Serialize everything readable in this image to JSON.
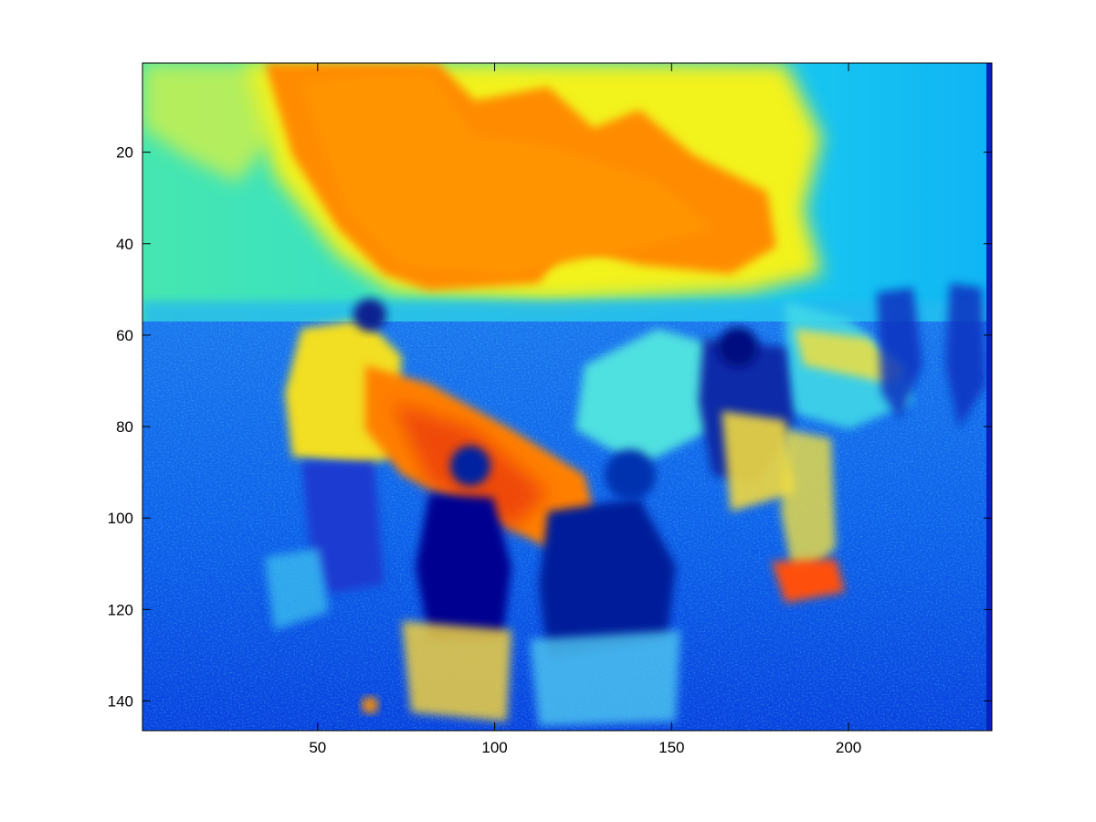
{
  "chart_data": {
    "type": "heatmap",
    "colormap": "jet",
    "title": "",
    "xlabel": "",
    "ylabel": "",
    "image_size": {
      "columns": 240,
      "rows": 146
    },
    "xlim": [
      0.5,
      240.5
    ],
    "ylim": [
      0.5,
      146.5
    ],
    "y_direction": "reverse",
    "x_ticks": [
      50,
      100,
      150,
      200
    ],
    "y_ticks": [
      20,
      40,
      60,
      80,
      100,
      120,
      140
    ],
    "x_tick_labels": [
      "50",
      "100",
      "150",
      "200"
    ],
    "y_tick_labels": [
      "20",
      "40",
      "60",
      "80",
      "100",
      "120",
      "140"
    ],
    "grid": false,
    "legend": "none",
    "regions": [
      {
        "name": "sky-left-cyan",
        "level": 0.42,
        "color": "#2fe0d0"
      },
      {
        "name": "sky-cloud-orange",
        "level": 0.82,
        "color": "#ff9000"
      },
      {
        "name": "cloud-edge-yellow",
        "level": 0.66,
        "color": "#f2f21a"
      },
      {
        "name": "sky-right-light-blue",
        "level": 0.33,
        "color": "#18c8f0"
      },
      {
        "name": "horizon-band",
        "level": 0.3,
        "color": "#28b8f0"
      },
      {
        "name": "ground-blue",
        "level": 0.15,
        "color": "#0a50e8"
      },
      {
        "name": "person-yellow-shirt",
        "level": 0.63,
        "color": "#f2de20"
      },
      {
        "name": "dark-clothing",
        "level": 0.08,
        "color": "#0000a0"
      },
      {
        "name": "table-orange-red",
        "level": 0.8,
        "color": "#ff7a00"
      },
      {
        "name": "car-cyan",
        "level": 0.38,
        "color": "#40d8e8"
      }
    ]
  }
}
